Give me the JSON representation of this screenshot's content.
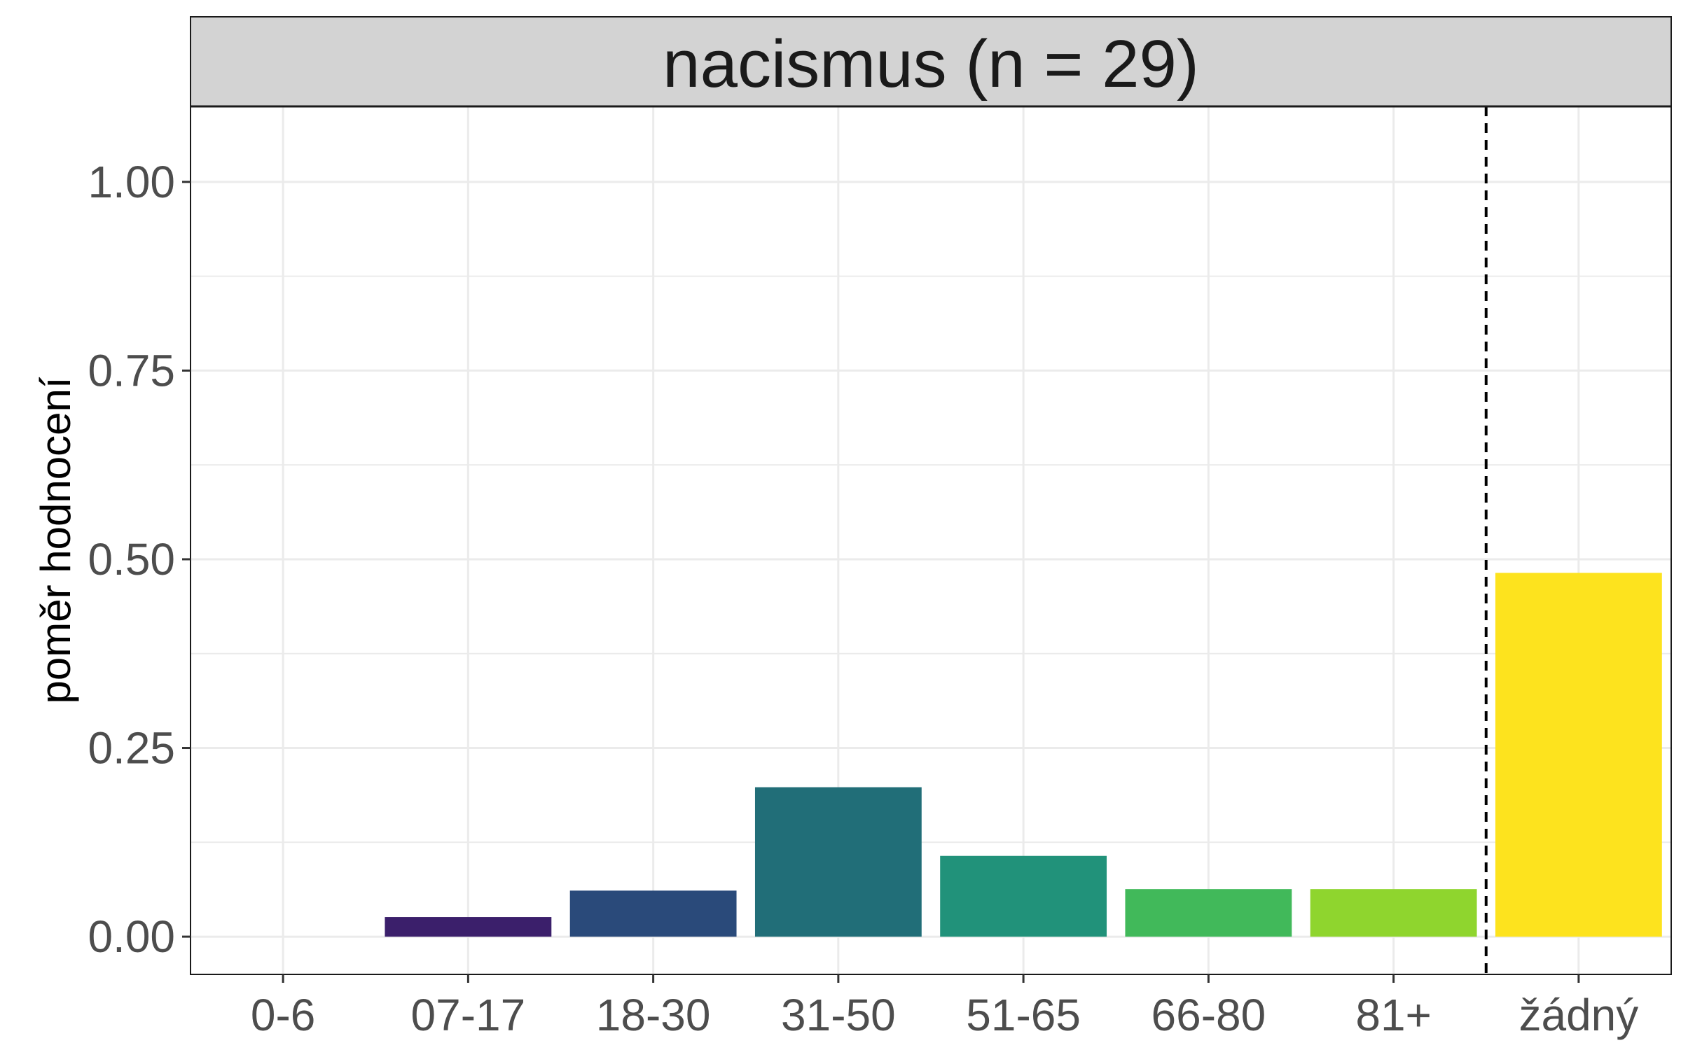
{
  "chart_data": {
    "type": "bar",
    "facet_title": "nacismus (n = 29)",
    "categories": [
      "0-6",
      "07-17",
      "18-30",
      "31-50",
      "51-65",
      "66-80",
      "81+",
      "žádný"
    ],
    "values": [
      0.0,
      0.026,
      0.061,
      0.198,
      0.107,
      0.063,
      0.063,
      0.482
    ],
    "colors": [
      "#440154",
      "#3b1f6b",
      "#2a4a7a",
      "#216e78",
      "#21927a",
      "#41b95a",
      "#8fd52e",
      "#fde31e"
    ],
    "xlabel": "",
    "ylabel": "poměr hodnocení",
    "ylim": [
      -0.05,
      1.1
    ],
    "y_ticks": [
      0.0,
      0.25,
      0.5,
      0.75,
      1.0
    ],
    "y_tick_labels": [
      "0.00",
      "0.25",
      "0.50",
      "0.75",
      "1.00"
    ],
    "reference_line": {
      "style": "dashed",
      "between": [
        "81+",
        "žádný"
      ]
    },
    "grid": true,
    "legend": "none"
  }
}
